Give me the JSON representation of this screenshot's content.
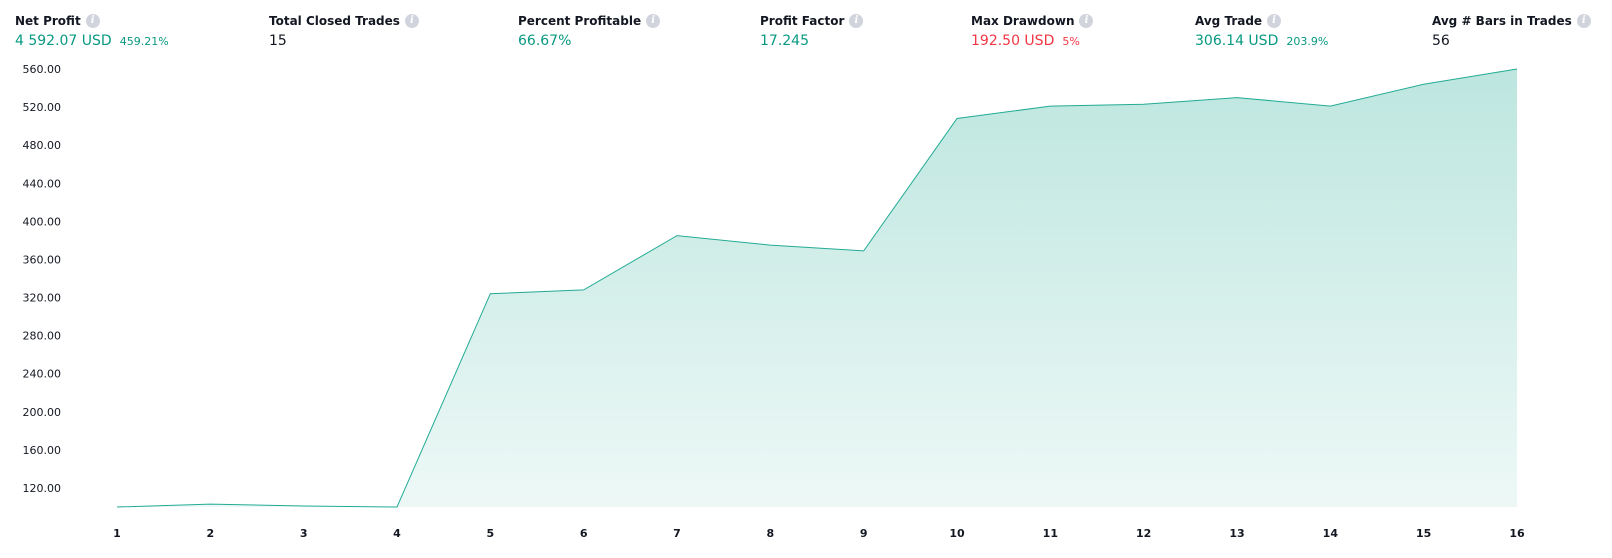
{
  "stats": [
    {
      "title": "Net Profit",
      "value": "4 592.07 USD",
      "sub": "459.21%",
      "tone": "green",
      "icon": "info-icon"
    },
    {
      "title": "Total Closed Trades",
      "value": "15",
      "sub": "",
      "tone": "dark",
      "icon": "info-icon"
    },
    {
      "title": "Percent Profitable",
      "value": "66.67%",
      "sub": "",
      "tone": "green",
      "icon": "info-icon"
    },
    {
      "title": "Profit Factor",
      "value": "17.245",
      "sub": "",
      "tone": "green",
      "icon": "info-icon"
    },
    {
      "title": "Max Drawdown",
      "value": "192.50 USD",
      "sub": "5%",
      "tone": "red",
      "icon": "info-icon"
    },
    {
      "title": "Avg Trade",
      "value": "306.14 USD",
      "sub": "203.9%",
      "tone": "green",
      "icon": "info-icon"
    },
    {
      "title": "Avg # Bars in Trades",
      "value": "56",
      "sub": "",
      "tone": "dark",
      "icon": "info-icon"
    }
  ],
  "colors": {
    "line": "#22ab94",
    "area_top": "#22ab94",
    "green": "#089981",
    "red": "#f23645"
  },
  "chart_data": {
    "type": "area",
    "x": [
      1,
      2,
      3,
      4,
      5,
      6,
      7,
      8,
      9,
      10,
      11,
      12,
      13,
      14,
      15,
      16
    ],
    "x_tick_labels": [
      "1",
      "2",
      "3",
      "4",
      "5",
      "6",
      "7",
      "8",
      "9",
      "10",
      "11",
      "12",
      "13",
      "14",
      "15",
      "16"
    ],
    "values": [
      100,
      103,
      101,
      100,
      324,
      328,
      385,
      375,
      369,
      508,
      521,
      523,
      530,
      521,
      544,
      560
    ],
    "y_ticks": [
      120,
      160,
      200,
      240,
      280,
      320,
      360,
      400,
      440,
      480,
      520,
      560
    ],
    "y_tick_labels": [
      "120.00",
      "160.00",
      "200.00",
      "240.00",
      "280.00",
      "320.00",
      "360.00",
      "400.00",
      "440.00",
      "480.00",
      "520.00",
      "560.00"
    ],
    "ylim": [
      100,
      560
    ],
    "xlim": [
      1,
      16
    ],
    "grid": false,
    "title": "",
    "xlabel": "",
    "ylabel": ""
  }
}
